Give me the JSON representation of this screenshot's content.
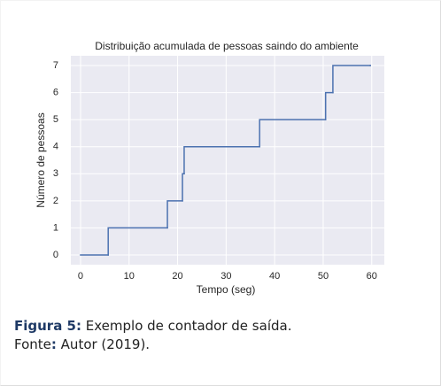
{
  "chart_data": {
    "type": "step",
    "title": "Distribuição acumulada de pessoas saindo do ambiente",
    "x_label": "Tempo (seg)",
    "y_label": "Número de pessoas",
    "x": [
      0,
      5.7,
      17.9,
      21.0,
      21.35,
      36.9,
      50.5,
      52.0,
      59.7
    ],
    "series": [
      {
        "color": "#4c72b0",
        "values": [
          0,
          1,
          2,
          3,
          4,
          5,
          6,
          7,
          7
        ]
      }
    ],
    "xlim": [
      -2,
      62.6
    ],
    "xticks": [
      0,
      10,
      20,
      30,
      40,
      50,
      60
    ],
    "ylim": [
      -0.36,
      7.36
    ],
    "yticks": [
      0,
      1,
      2,
      3,
      4,
      5,
      6,
      7
    ],
    "grid": true,
    "background": "#eaeaf2"
  },
  "caption": {
    "label": "Figura 5:",
    "text": "Exemplo de contador de saída.",
    "source_label": "Fonte",
    "source_sep": ":",
    "source_text": "Autor (2019)."
  }
}
